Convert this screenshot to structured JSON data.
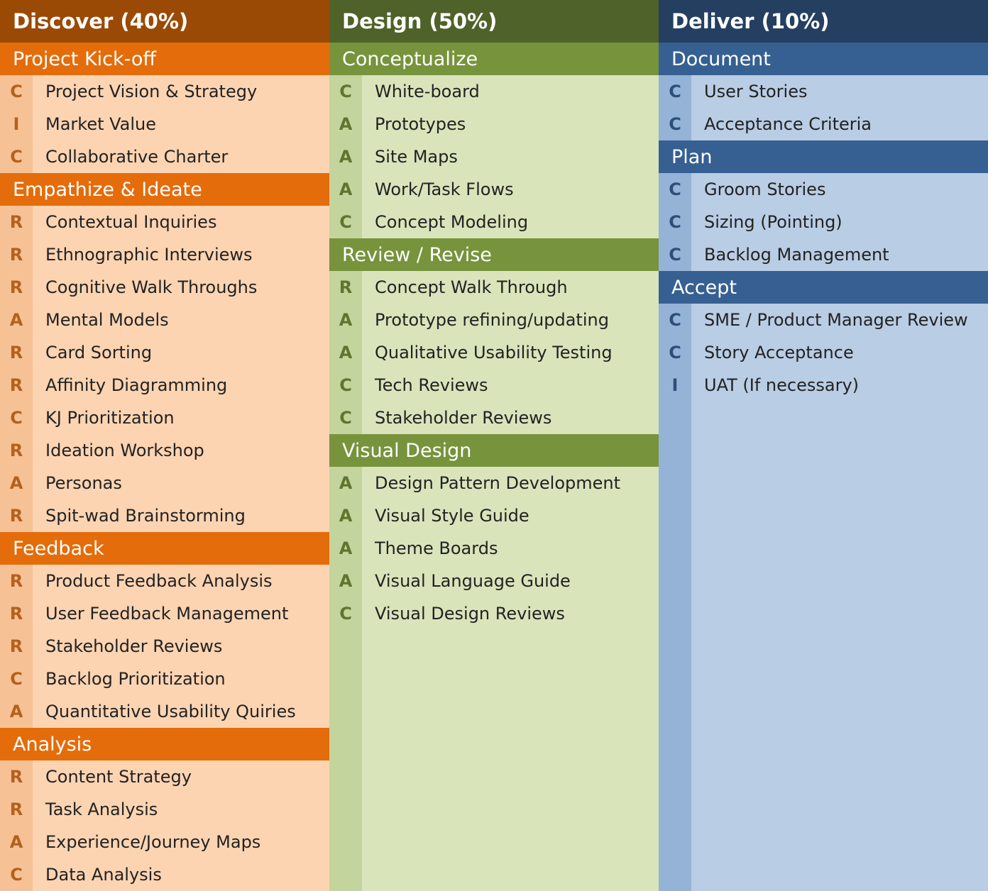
{
  "columns": [
    {
      "id": "discover",
      "title": "Discover (40%)",
      "sections": [
        {
          "title": "Project Kick-off",
          "items": [
            {
              "code": "C",
              "label": "Project Vision & Strategy"
            },
            {
              "code": "I",
              "label": "Market Value"
            },
            {
              "code": "C",
              "label": "Collaborative Charter"
            }
          ]
        },
        {
          "title": "Empathize & Ideate",
          "items": [
            {
              "code": "R",
              "label": "Contextual Inquiries"
            },
            {
              "code": "R",
              "label": "Ethnographic Interviews"
            },
            {
              "code": "R",
              "label": "Cognitive Walk Throughs"
            },
            {
              "code": "A",
              "label": "Mental Models"
            },
            {
              "code": "R",
              "label": "Card Sorting"
            },
            {
              "code": "R",
              "label": "Affinity Diagramming"
            },
            {
              "code": "C",
              "label": "KJ Prioritization"
            },
            {
              "code": "R",
              "label": "Ideation Workshop"
            },
            {
              "code": "A",
              "label": "Personas"
            },
            {
              "code": "R",
              "label": "Spit-wad Brainstorming"
            }
          ]
        },
        {
          "title": "Feedback",
          "items": [
            {
              "code": "R",
              "label": "Product Feedback Analysis"
            },
            {
              "code": "R",
              "label": "User Feedback Management"
            },
            {
              "code": "R",
              "label": "Stakeholder Reviews"
            },
            {
              "code": "C",
              "label": "Backlog Prioritization"
            },
            {
              "code": "A",
              "label": "Quantitative Usability Quiries"
            }
          ]
        },
        {
          "title": "Analysis",
          "items": [
            {
              "code": "R",
              "label": "Content Strategy"
            },
            {
              "code": "R",
              "label": "Task Analysis"
            },
            {
              "code": "A",
              "label": "Experience/Journey Maps"
            },
            {
              "code": "C",
              "label": "Data Analysis"
            }
          ]
        }
      ]
    },
    {
      "id": "design",
      "title": "Design (50%)",
      "sections": [
        {
          "title": "Conceptualize",
          "items": [
            {
              "code": "C",
              "label": "White-board"
            },
            {
              "code": "A",
              "label": "Prototypes"
            },
            {
              "code": "A",
              "label": "Site Maps"
            },
            {
              "code": "A",
              "label": "Work/Task Flows"
            },
            {
              "code": "C",
              "label": "Concept Modeling"
            }
          ]
        },
        {
          "title": "Review / Revise",
          "items": [
            {
              "code": "R",
              "label": "Concept Walk Through"
            },
            {
              "code": "A",
              "label": "Prototype refining/updating"
            },
            {
              "code": "A",
              "label": "Qualitative Usability Testing"
            },
            {
              "code": "C",
              "label": "Tech Reviews"
            },
            {
              "code": "C",
              "label": "Stakeholder Reviews"
            }
          ]
        },
        {
          "title": "Visual Design",
          "items": [
            {
              "code": "A",
              "label": "Design Pattern Development"
            },
            {
              "code": "A",
              "label": "Visual Style Guide"
            },
            {
              "code": "A",
              "label": "Theme Boards"
            },
            {
              "code": "A",
              "label": "Visual Language Guide"
            },
            {
              "code": "C",
              "label": "Visual Design Reviews"
            }
          ]
        }
      ]
    },
    {
      "id": "deliver",
      "title": "Deliver (10%)",
      "sections": [
        {
          "title": "Document",
          "items": [
            {
              "code": "C",
              "label": "User Stories"
            },
            {
              "code": "C",
              "label": "Acceptance Criteria"
            }
          ]
        },
        {
          "title": "Plan",
          "items": [
            {
              "code": "C",
              "label": "Groom Stories"
            },
            {
              "code": "C",
              "label": "Sizing (Pointing)"
            },
            {
              "code": "C",
              "label": "Backlog Management"
            }
          ]
        },
        {
          "title": "Accept",
          "items": [
            {
              "code": "C",
              "label": "SME / Product Manager Review"
            },
            {
              "code": "C",
              "label": "Story Acceptance"
            },
            {
              "code": "I",
              "label": "UAT (If necessary)"
            }
          ]
        }
      ]
    }
  ]
}
